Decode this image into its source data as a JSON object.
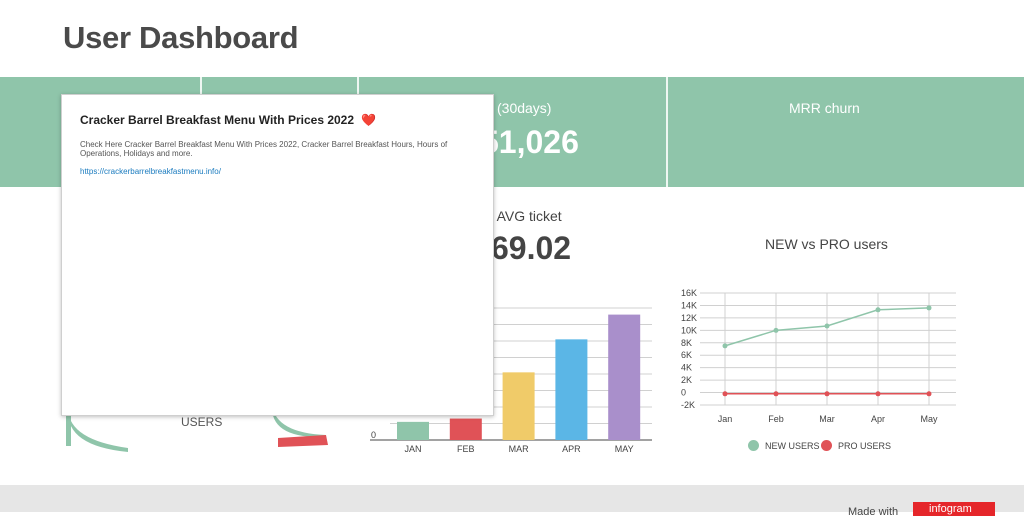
{
  "page": {
    "title": "User Dashboard"
  },
  "kpis": {
    "mrr_label_partial": "R (30days)",
    "mrr_value_partial": "51,026",
    "churn_label": "MRR churn"
  },
  "avg_ticket": {
    "label_partial": "er AVG ticket",
    "value_partial": "69.02"
  },
  "gauge": {
    "label": "USERS",
    "colors": {
      "green": "#8fc5aa",
      "red": "#e05257"
    }
  },
  "popup": {
    "title": "Cracker Barrel Breakfast Menu With Prices 2022",
    "heart": "❤️",
    "description": "Check Here Cracker Barrel Breakfast Menu With Prices 2022, Cracker Barrel Breakfast Hours, Hours of Operations, Holidays and more.",
    "link": "https://crackerbarrelbreakfastmenu.info/"
  },
  "chart_data": [
    {
      "type": "bar",
      "categories": [
        "JAN",
        "FEB",
        "MAR",
        "APR",
        "MAY"
      ],
      "values": [
        2.2,
        2.6,
        8.2,
        12.2,
        15.2
      ],
      "colors": [
        "#8fc5aa",
        "#e05257",
        "#f0cb69",
        "#5bb6e6",
        "#a98fcb"
      ],
      "ylim": [
        0,
        16
      ],
      "visible_tick_labels": [
        "0"
      ]
    },
    {
      "type": "line",
      "title": "NEW vs PRO users",
      "categories": [
        "Jan",
        "Feb",
        "Mar",
        "Apr",
        "May"
      ],
      "yticks": [
        "16K",
        "14K",
        "12K",
        "10K",
        "8K",
        "6K",
        "4K",
        "2K",
        "0",
        "-2K"
      ],
      "ylim": [
        -2000,
        16000
      ],
      "grid": true,
      "legend": "bottom",
      "series": [
        {
          "name": "NEW USERS",
          "color": "#8fc5aa",
          "values": [
            7500,
            10000,
            10700,
            13300,
            13600
          ]
        },
        {
          "name": "PRO USERS",
          "color": "#e05257",
          "values": [
            -200,
            -200,
            -200,
            -200,
            -200
          ]
        }
      ]
    }
  ],
  "footer": {
    "made_with": "Made with",
    "brand": "infogram"
  }
}
